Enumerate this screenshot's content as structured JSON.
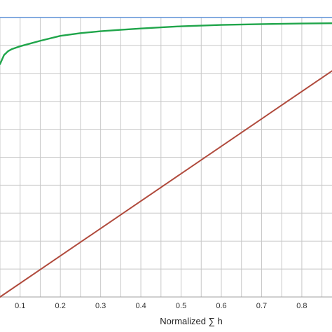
{
  "chart_data": {
    "type": "line",
    "title": "",
    "xlabel": "Normalized ∑ h",
    "ylabel": "",
    "xlim": [
      0.05,
      0.875
    ],
    "ylim": [
      0.0,
      1.02
    ],
    "x_ticks": [
      0.1,
      0.2,
      0.3,
      0.4,
      0.5,
      0.6,
      0.7,
      0.8
    ],
    "x_tick_labels": [
      "0.1",
      "0.2",
      "0.3",
      "0.4",
      "0.5",
      "0.6",
      "0.7",
      "0.8"
    ],
    "grid": true,
    "legend": "none",
    "series": [
      {
        "color": "#1fa54a",
        "x": [
          0.05,
          0.06,
          0.07,
          0.08,
          0.1,
          0.12,
          0.15,
          0.2,
          0.25,
          0.3,
          0.35,
          0.4,
          0.45,
          0.5,
          0.6,
          0.7,
          0.8,
          0.875
        ],
        "y": [
          0.85,
          0.883,
          0.897,
          0.905,
          0.915,
          0.923,
          0.935,
          0.953,
          0.963,
          0.97,
          0.975,
          0.98,
          0.984,
          0.988,
          0.993,
          0.996,
          0.998,
          0.999
        ]
      },
      {
        "color": "#b04a3c",
        "x": [
          0.05,
          0.875
        ],
        "y": [
          0.0,
          0.825
        ]
      }
    ]
  },
  "colors": {
    "grid": "#c8c8c8",
    "top_border": "#5b8fd6",
    "axis_frame": "#a0a0a0"
  }
}
